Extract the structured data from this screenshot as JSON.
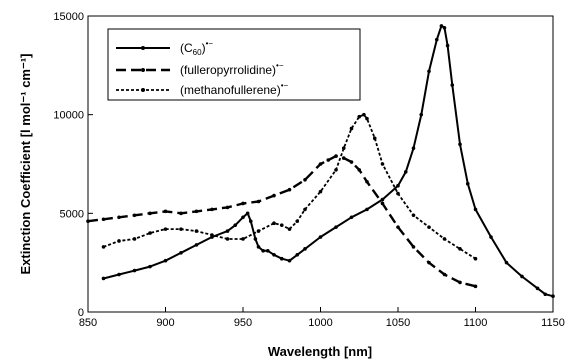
{
  "chart_data": {
    "type": "line",
    "xlabel": "Wavelength [nm]",
    "ylabel": "Extinction Coefficient [l mol⁻¹ cm⁻¹]",
    "xlim": [
      850,
      1150
    ],
    "ylim": [
      0,
      15000
    ],
    "x_ticks": [
      "850",
      "900",
      "950",
      "1000",
      "1050",
      "1100",
      "1150"
    ],
    "y_ticks": [
      "0",
      "5000",
      "10000",
      "15000"
    ],
    "grid": false,
    "legend_position": "top-left",
    "legend": [
      {
        "base": "(C",
        "sub": "60",
        "close": ")",
        "sup": "•−"
      },
      {
        "base": "(fulleropyrrolidine)",
        "sup": "•−"
      },
      {
        "base": "(methanofullerene)",
        "sup": "•−"
      }
    ],
    "series": [
      {
        "style": "solid",
        "x": [
          860,
          870,
          880,
          890,
          900,
          910,
          920,
          930,
          940,
          945,
          950,
          953,
          955,
          958,
          960,
          963,
          966,
          970,
          975,
          980,
          985,
          990,
          1000,
          1010,
          1020,
          1030,
          1040,
          1050,
          1055,
          1060,
          1065,
          1070,
          1075,
          1078,
          1080,
          1082,
          1085,
          1090,
          1095,
          1100,
          1110,
          1120,
          1130,
          1140,
          1145,
          1150
        ],
        "y": [
          1700,
          1900,
          2100,
          2300,
          2600,
          3000,
          3400,
          3800,
          4100,
          4400,
          4800,
          5000,
          4600,
          3700,
          3300,
          3100,
          3100,
          2900,
          2700,
          2600,
          2900,
          3200,
          3800,
          4300,
          4800,
          5200,
          5700,
          6400,
          7100,
          8300,
          10000,
          12200,
          13800,
          14500,
          14400,
          13500,
          11500,
          8500,
          6500,
          5200,
          3800,
          2500,
          1800,
          1200,
          900,
          800
        ]
      },
      {
        "style": "long-dash",
        "x": [
          850,
          860,
          870,
          880,
          890,
          900,
          910,
          920,
          930,
          940,
          950,
          960,
          970,
          980,
          990,
          1000,
          1005,
          1010,
          1015,
          1020,
          1025,
          1030,
          1040,
          1050,
          1060,
          1070,
          1080,
          1090,
          1100
        ],
        "y": [
          4600,
          4700,
          4800,
          4900,
          5000,
          5100,
          5000,
          5100,
          5200,
          5300,
          5500,
          5600,
          5900,
          6200,
          6700,
          7500,
          7700,
          7900,
          7800,
          7600,
          7200,
          6600,
          5500,
          4300,
          3300,
          2500,
          1900,
          1500,
          1300
        ]
      },
      {
        "style": "short-dash",
        "x": [
          860,
          870,
          880,
          890,
          900,
          910,
          920,
          930,
          940,
          950,
          960,
          970,
          975,
          980,
          985,
          990,
          1000,
          1010,
          1015,
          1020,
          1025,
          1028,
          1030,
          1035,
          1040,
          1050,
          1060,
          1070,
          1080,
          1090,
          1100
        ],
        "y": [
          3300,
          3600,
          3700,
          4000,
          4200,
          4200,
          4100,
          3900,
          3700,
          3700,
          4100,
          4500,
          4400,
          4200,
          4600,
          5200,
          6100,
          7200,
          8300,
          9300,
          9900,
          10000,
          9800,
          8800,
          7500,
          6000,
          4900,
          4300,
          3700,
          3200,
          2700
        ]
      }
    ]
  }
}
